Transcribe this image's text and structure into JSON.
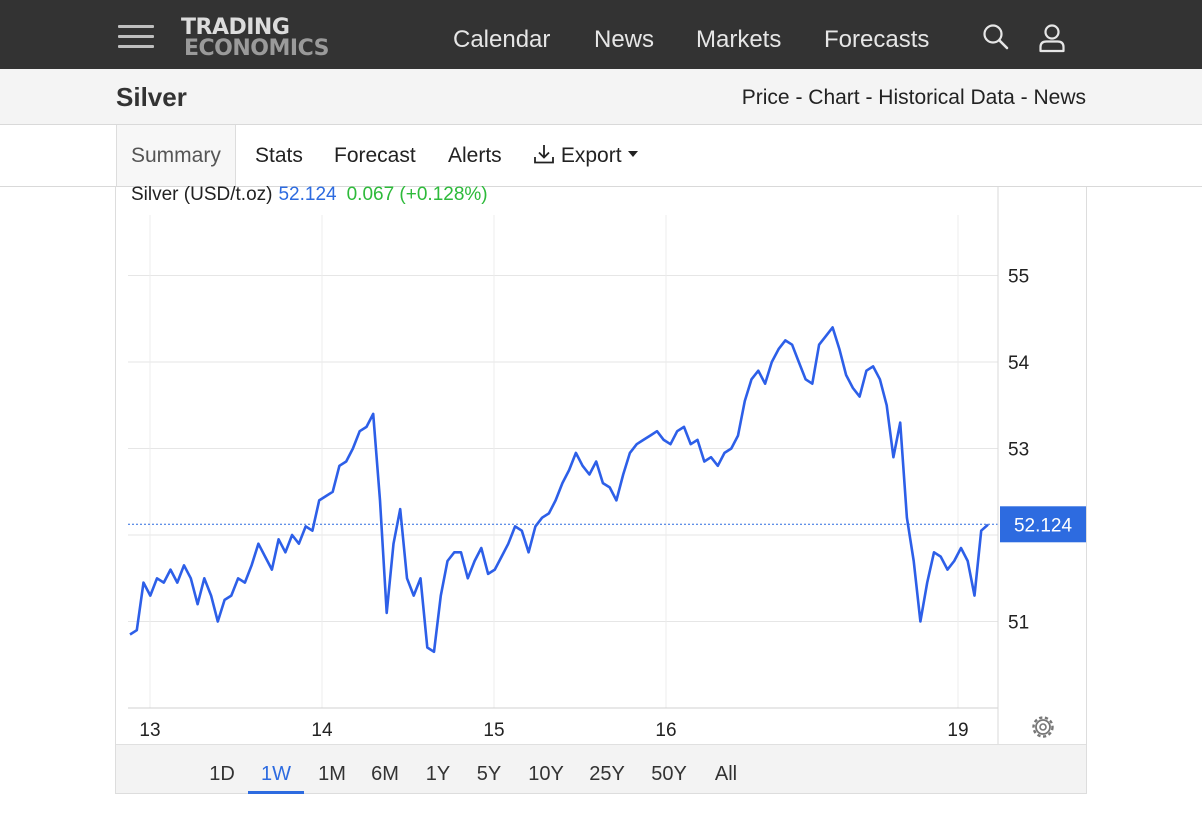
{
  "header": {
    "logo_line1": "TRADING",
    "logo_line2": "ECONOMICS",
    "nav": [
      "Calendar",
      "News",
      "Markets",
      "Forecasts"
    ]
  },
  "page": {
    "title": "Silver",
    "subnav": "Price - Chart - Historical Data - News"
  },
  "tabs": [
    "Summary",
    "Stats",
    "Forecast",
    "Alerts",
    "Export"
  ],
  "quote": {
    "name": "Silver (USD/t.oz)",
    "price": "52.124",
    "change": "0.067 (+0.128%)"
  },
  "ranges": [
    "1D",
    "1W",
    "1M",
    "6M",
    "1Y",
    "5Y",
    "10Y",
    "25Y",
    "50Y",
    "All"
  ],
  "active_range": "1W",
  "colors": {
    "line": "#2d5fe8",
    "price_tag": "#2d6be0",
    "change": "#2dba3a",
    "topbar": "#333333"
  },
  "chart_data": {
    "type": "line",
    "title": "",
    "xlabel": "",
    "ylabel": "",
    "x_ticks": [
      "13",
      "14",
      "15",
      "16",
      "19"
    ],
    "y_ticks": [
      51,
      53,
      54,
      55
    ],
    "ylim": [
      50.0,
      55.7
    ],
    "last_value": 52.124,
    "grid": true,
    "y_axis_position": "right",
    "series": [
      {
        "values": [
          50.85,
          50.9,
          51.45,
          51.3,
          51.5,
          51.45,
          51.6,
          51.45,
          51.65,
          51.5,
          51.2,
          51.5,
          51.3,
          51.0,
          51.25,
          51.3,
          51.5,
          51.45,
          51.65,
          51.9,
          51.75,
          51.6,
          51.95,
          51.8,
          52.0,
          51.9,
          52.1,
          52.05,
          52.4,
          52.45,
          52.5,
          52.8,
          52.85,
          53.0,
          53.2,
          53.25,
          53.4,
          52.4,
          51.1,
          51.9,
          52.3,
          51.5,
          51.3,
          51.5,
          50.7,
          50.65,
          51.3,
          51.7,
          51.8,
          51.8,
          51.5,
          51.7,
          51.85,
          51.55,
          51.6,
          51.75,
          51.9,
          52.1,
          52.05,
          51.8,
          52.1,
          52.2,
          52.25,
          52.4,
          52.6,
          52.75,
          52.95,
          52.8,
          52.7,
          52.85,
          52.6,
          52.55,
          52.4,
          52.7,
          52.95,
          53.05,
          53.1,
          53.15,
          53.2,
          53.1,
          53.05,
          53.2,
          53.25,
          53.05,
          53.1,
          52.85,
          52.9,
          52.8,
          52.95,
          53.0,
          53.15,
          53.55,
          53.8,
          53.9,
          53.75,
          54.0,
          54.15,
          54.25,
          54.2,
          54.0,
          53.8,
          53.75,
          54.2,
          54.3,
          54.4,
          54.15,
          53.85,
          53.7,
          53.6,
          53.9,
          53.95,
          53.8,
          53.5,
          52.9,
          53.3,
          52.2,
          51.7,
          51.0,
          51.45,
          51.8,
          51.75,
          51.6,
          51.7,
          51.85,
          51.7,
          51.3,
          52.05,
          52.12
        ]
      }
    ]
  }
}
